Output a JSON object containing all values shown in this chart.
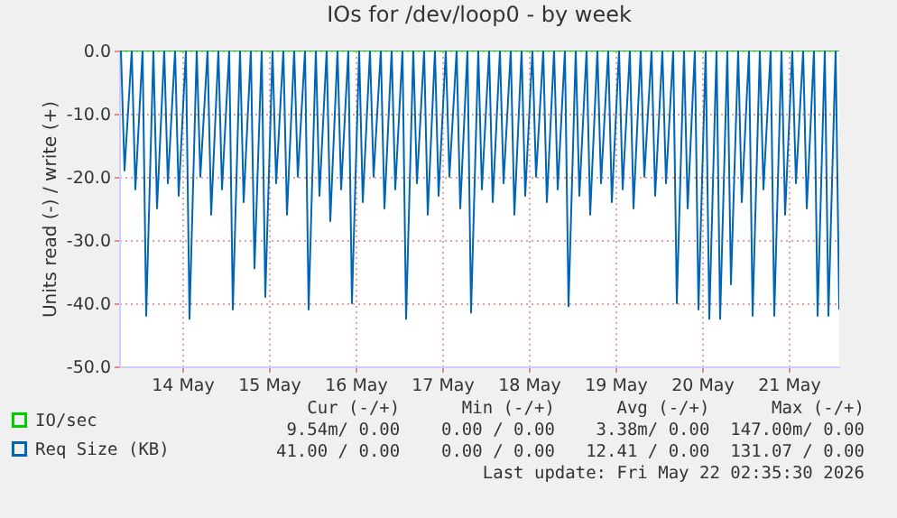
{
  "chart_data": {
    "type": "line",
    "title": "IOs for /dev/loop0 - by week",
    "ylabel": "Units read (-) / write (+)",
    "xlim": [
      "2026-05-13T18:30",
      "2026-05-22T02:00"
    ],
    "xticks": [
      {
        "value": "2026-05-14T12:00",
        "label": "14 May"
      },
      {
        "value": "2026-05-15T12:00",
        "label": "15 May"
      },
      {
        "value": "2026-05-16T12:00",
        "label": "16 May"
      },
      {
        "value": "2026-05-17T12:00",
        "label": "17 May"
      },
      {
        "value": "2026-05-18T12:00",
        "label": "18 May"
      },
      {
        "value": "2026-05-19T12:00",
        "label": "19 May"
      },
      {
        "value": "2026-05-20T12:00",
        "label": "20 May"
      },
      {
        "value": "2026-05-21T12:00",
        "label": "21 May"
      }
    ],
    "ylim": [
      -50,
      0
    ],
    "yticks": [
      {
        "value": -50,
        "label": "-50.0"
      },
      {
        "value": -40,
        "label": "-40.0"
      },
      {
        "value": -30,
        "label": "-30.0"
      },
      {
        "value": -20,
        "label": "-20.0"
      },
      {
        "value": -10,
        "label": "-10.0"
      },
      {
        "value": 0,
        "label": "0.0"
      }
    ],
    "grid": true,
    "legend": "bottom left",
    "marker": "none",
    "line_style": "solid",
    "series": [
      {
        "name": "IO/sec",
        "color": "#00cc00",
        "x": [
          "2026-05-13T18:30",
          "2026-05-22T02:00"
        ],
        "values": [
          0,
          0
        ]
      },
      {
        "name": "Req Size (KB)",
        "color": "#0066b3",
        "x": [
          "2026-05-13T19:00",
          "2026-05-13T20:00",
          "2026-05-13T22:00",
          "2026-05-13T23:00",
          "2026-05-14T01:00",
          "2026-05-14T02:00",
          "2026-05-14T04:00",
          "2026-05-14T05:00",
          "2026-05-14T07:00",
          "2026-05-14T08:00",
          "2026-05-14T10:00",
          "2026-05-14T11:00",
          "2026-05-14T13:00",
          "2026-05-14T14:00",
          "2026-05-14T16:00",
          "2026-05-14T17:00",
          "2026-05-14T19:00",
          "2026-05-14T20:00",
          "2026-05-14T22:00",
          "2026-05-14T23:00",
          "2026-05-15T01:00",
          "2026-05-15T02:00",
          "2026-05-15T04:00",
          "2026-05-15T05:00",
          "2026-05-15T07:00",
          "2026-05-15T08:00",
          "2026-05-15T10:00",
          "2026-05-15T11:00",
          "2026-05-15T13:00",
          "2026-05-15T14:00",
          "2026-05-15T16:00",
          "2026-05-15T17:00",
          "2026-05-15T19:00",
          "2026-05-15T20:00",
          "2026-05-15T22:00",
          "2026-05-15T23:00",
          "2026-05-16T01:00",
          "2026-05-16T02:00",
          "2026-05-16T04:00",
          "2026-05-16T05:00",
          "2026-05-16T07:00",
          "2026-05-16T08:00",
          "2026-05-16T10:00",
          "2026-05-16T11:00",
          "2026-05-16T13:00",
          "2026-05-16T14:00",
          "2026-05-16T16:00",
          "2026-05-16T17:00",
          "2026-05-16T19:00",
          "2026-05-16T20:00",
          "2026-05-16T22:00",
          "2026-05-16T23:00",
          "2026-05-17T01:00",
          "2026-05-17T02:00",
          "2026-05-17T04:00",
          "2026-05-17T05:00",
          "2026-05-17T07:00",
          "2026-05-17T08:00",
          "2026-05-17T10:00",
          "2026-05-17T11:00",
          "2026-05-17T13:00",
          "2026-05-17T14:00",
          "2026-05-17T16:00",
          "2026-05-17T17:00",
          "2026-05-17T19:00",
          "2026-05-17T20:00",
          "2026-05-17T22:00",
          "2026-05-17T23:00",
          "2026-05-18T01:00",
          "2026-05-18T02:00",
          "2026-05-18T04:00",
          "2026-05-18T05:00",
          "2026-05-18T07:00",
          "2026-05-18T08:00",
          "2026-05-18T10:00",
          "2026-05-18T11:00",
          "2026-05-18T13:00",
          "2026-05-18T14:00",
          "2026-05-18T16:00",
          "2026-05-18T17:00",
          "2026-05-18T19:00",
          "2026-05-18T20:00",
          "2026-05-18T22:00",
          "2026-05-18T23:00",
          "2026-05-19T01:00",
          "2026-05-19T02:00",
          "2026-05-19T04:00",
          "2026-05-19T05:00",
          "2026-05-19T07:00",
          "2026-05-19T08:00",
          "2026-05-19T10:00",
          "2026-05-19T11:00",
          "2026-05-19T13:00",
          "2026-05-19T14:00",
          "2026-05-19T16:00",
          "2026-05-19T17:00",
          "2026-05-19T19:00",
          "2026-05-19T20:00",
          "2026-05-19T22:00",
          "2026-05-19T23:00",
          "2026-05-20T01:00",
          "2026-05-20T02:00",
          "2026-05-20T04:00",
          "2026-05-20T05:00",
          "2026-05-20T07:00",
          "2026-05-20T08:00",
          "2026-05-20T10:00",
          "2026-05-20T11:00",
          "2026-05-20T13:00",
          "2026-05-20T14:00",
          "2026-05-20T16:00",
          "2026-05-20T17:00",
          "2026-05-20T19:00",
          "2026-05-20T20:00",
          "2026-05-20T22:00",
          "2026-05-20T23:00",
          "2026-05-21T01:00",
          "2026-05-21T02:00",
          "2026-05-21T04:00",
          "2026-05-21T05:00",
          "2026-05-21T07:00",
          "2026-05-21T08:00",
          "2026-05-21T10:00",
          "2026-05-21T11:00",
          "2026-05-21T13:00",
          "2026-05-21T14:00",
          "2026-05-21T16:00",
          "2026-05-21T17:00",
          "2026-05-21T19:00",
          "2026-05-21T20:00",
          "2026-05-21T22:00",
          "2026-05-21T23:00",
          "2026-05-22T01:00",
          "2026-05-22T02:00"
        ],
        "values": [
          0,
          -19,
          0,
          -22,
          0,
          -42,
          0,
          -25,
          0,
          -21,
          0,
          -23,
          0,
          -42.5,
          0,
          -20,
          0,
          -26,
          0,
          -22,
          0,
          -41,
          0,
          -24,
          0,
          -34.5,
          0,
          -39,
          0,
          -21,
          0,
          -26,
          0,
          -20,
          0,
          -41,
          0,
          -23,
          0,
          -27,
          0,
          -22,
          0,
          -40,
          0,
          -24,
          0,
          -20,
          0,
          -25,
          0,
          -22,
          0,
          -42.5,
          0,
          -21,
          0,
          -26,
          0,
          -23,
          0,
          -20,
          0,
          -25,
          0,
          -41.5,
          0,
          -22,
          0,
          -24,
          0,
          -21,
          0,
          -26,
          0,
          -23,
          0,
          -20,
          0,
          -24,
          0,
          -22,
          0,
          -40.5,
          0,
          -23,
          0,
          -26,
          0,
          -21,
          0,
          -24,
          0,
          -22,
          0,
          -25,
          0,
          -20,
          0,
          -23,
          0,
          -21,
          0,
          -40,
          0,
          -25,
          0,
          -41,
          0,
          -42.5,
          0,
          -42.5,
          0,
          -37,
          0,
          -24,
          0,
          -42,
          0,
          -22,
          0,
          -42,
          0,
          -26,
          0,
          -21,
          0,
          -25,
          0,
          -42,
          0,
          -42,
          0,
          -41
        ]
      }
    ],
    "annotations": [
      "Cur (-/+)      Min (-/+)      Avg (-/+)      Max (-/+)",
      "9.54m/ 0.00    0.00 / 0.00    3.38m/ 0.00  147.00m/ 0.00",
      "41.00 / 0.00    0.00 / 0.00   12.41 / 0.00  131.07 / 0.00",
      "Last update: Fri May 22 02:35:30 2026"
    ]
  }
}
